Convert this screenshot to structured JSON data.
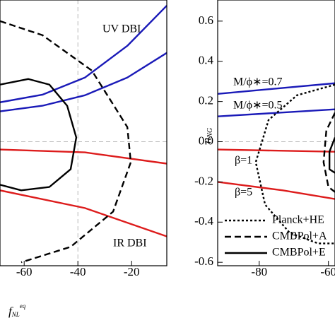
{
  "chart_data": [
    {
      "type": "line",
      "xlabel": {
        "main": "f",
        "sub": "NL",
        "sup": "eq"
      },
      "xlim": [
        -69,
        -6.9
      ],
      "xticks": [
        -60,
        -40,
        -20
      ],
      "ylim": [
        -0.617,
        0.705
      ],
      "grid_x": [
        -40
      ],
      "grid_y": [
        0
      ],
      "annotations": [
        "UV DBI",
        "IR DBI"
      ],
      "series": [
        {
          "color": "#1a1ab8",
          "dash": "solid",
          "x": [
            -69,
            -53.2,
            -37.4,
            -21.6,
            -6.9
          ],
          "values": [
            0.196,
            0.234,
            0.319,
            0.477,
            0.677
          ]
        },
        {
          "color": "#1a1ab8",
          "dash": "solid",
          "x": [
            -69,
            -53.2,
            -37.4,
            -21.6,
            -6.9
          ],
          "values": [
            0.151,
            0.179,
            0.231,
            0.319,
            0.442
          ]
        },
        {
          "color": "#dd1c1c",
          "dash": "solid",
          "x": [
            -69,
            -37.4,
            -6.9
          ],
          "values": [
            -0.039,
            -0.053,
            -0.109
          ]
        },
        {
          "color": "#dd1c1c",
          "dash": "solid",
          "x": [
            -69,
            -37.4,
            -6.9
          ],
          "values": [
            -0.242,
            -0.33,
            -0.471
          ]
        },
        {
          "color": "#000000",
          "dash": "dashed",
          "x": [
            -69,
            -53.2,
            -34.8,
            -21.6,
            -20.3,
            -26.9,
            -42.7,
            -61.1
          ],
          "values": [
            0.6,
            0.53,
            0.354,
            0.073,
            -0.102,
            -0.348,
            -0.523,
            -0.6
          ]
        },
        {
          "color": "#000000",
          "dash": "solid",
          "x": [
            -69,
            -58.5,
            -50.6,
            -44,
            -40.6,
            -42.7,
            -50.6,
            -61.1,
            -69
          ],
          "values": [
            0.284,
            0.312,
            0.284,
            0.179,
            0.021,
            -0.137,
            -0.225,
            -0.242,
            -0.214
          ]
        }
      ]
    },
    {
      "type": "line",
      "ylabel": {
        "main": "n",
        "sub": "NG"
      },
      "xlim": [
        -92,
        -58.1
      ],
      "xticks": [
        -80,
        -60
      ],
      "ylim": [
        -0.617,
        0.705
      ],
      "yticks": [
        0.6,
        0.4,
        0.2,
        {
          "value": 0,
          "label": "0.0"
        },
        -0.2,
        -0.4,
        -0.6
      ],
      "grid_y": [
        0
      ],
      "annotations": [
        "M/ϕ∗=0.7",
        "M/ϕ∗=0.5",
        "β=1",
        "β=5"
      ],
      "series": [
        {
          "color": "#1a1ab8",
          "dash": "solid",
          "x": [
            -92,
            -58.1
          ],
          "values": [
            0.238,
            0.291
          ]
        },
        {
          "color": "#1a1ab8",
          "dash": "solid",
          "x": [
            -92,
            -58.1
          ],
          "values": [
            0.126,
            0.161
          ]
        },
        {
          "color": "#dd1c1c",
          "dash": "solid",
          "x": [
            -92,
            -58.1
          ],
          "values": [
            -0.039,
            -0.05
          ]
        },
        {
          "color": "#dd1c1c",
          "dash": "solid",
          "x": [
            -92,
            -73.2,
            -58.1
          ],
          "values": [
            -0.2,
            -0.242,
            -0.285
          ]
        },
        {
          "name": "Planck+HE",
          "color": "#000000",
          "dash": "dotted",
          "x": [
            -58.1,
            -69.1,
            -77.3,
            -81,
            -78.3,
            -71.2,
            -63,
            -58.1
          ],
          "values": [
            0.284,
            0.231,
            0.108,
            -0.102,
            -0.313,
            -0.453,
            -0.506,
            -0.506
          ]
        },
        {
          "name": "CMBPol+A",
          "color": "#000000",
          "dash": "dashed",
          "x": [
            -58.1,
            -60.6,
            -61.4,
            -60,
            -58.1
          ],
          "values": [
            0.144,
            0.056,
            -0.102,
            -0.225,
            -0.25
          ]
        },
        {
          "name": "CMBPol+E",
          "color": "#000000",
          "dash": "solid",
          "x": [
            -58.1,
            -59.7,
            -59.7,
            -58.1
          ],
          "values": [
            0.021,
            -0.05,
            -0.137,
            -0.155
          ]
        }
      ]
    }
  ]
}
